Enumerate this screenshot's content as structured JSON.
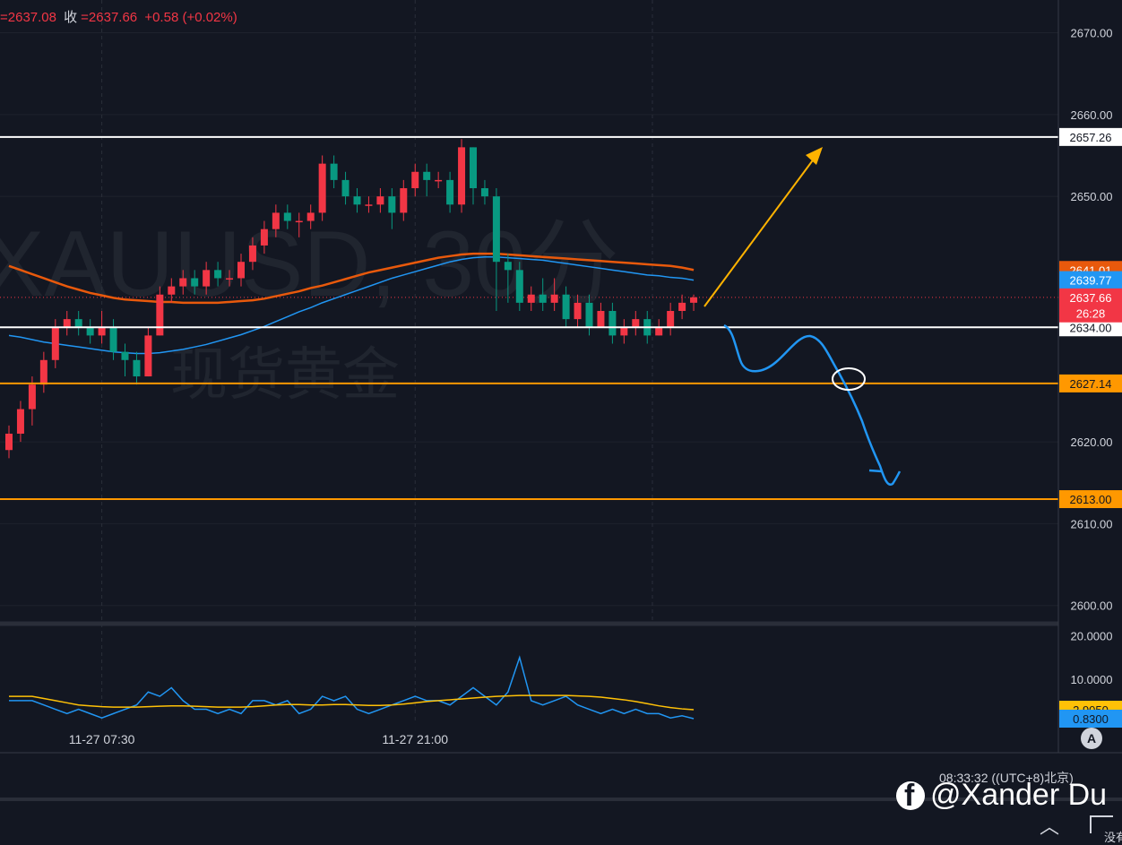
{
  "header": {
    "open_value": "=2637.08",
    "close_label": "收",
    "close_value": "=2637.66",
    "change": "+0.58 (+0.02%)"
  },
  "watermark": {
    "symbol": "XAUUSD, 30分",
    "name": "现货黄金"
  },
  "footer": {
    "time_text": "08:33:32 ((UTC+8)北京)",
    "credit": "@Xander Du",
    "truncated": "没有",
    "auto_scale_label": "A"
  },
  "colors": {
    "up": "#f23645",
    "down": "#089981",
    "bg": "#131722",
    "ma_slow": "#e8590c",
    "ma_fast": "#2196f3",
    "support": "#ff9800",
    "arrow": "#ffb300"
  },
  "chart_data": [
    {
      "type": "candlestick",
      "ylim": [
        2598,
        2674
      ],
      "y_ticks": [
        "2670.00",
        "2660.00",
        "2650.00",
        "2620.00",
        "2610.00",
        "2600.00"
      ],
      "x_ticks": [
        "11-27 07:30",
        "11-27 21:00"
      ],
      "x_tick_index": [
        8,
        35
      ],
      "candles": [
        [
          2619,
          2621,
          2622,
          2618
        ],
        [
          2621,
          2624,
          2625,
          2620
        ],
        [
          2624,
          2627,
          2628,
          2622
        ],
        [
          2627,
          2630,
          2631,
          2626
        ],
        [
          2630,
          2634,
          2635,
          2629
        ],
        [
          2634,
          2635,
          2636,
          2633
        ],
        [
          2635,
          2634,
          2636,
          2633
        ],
        [
          2634,
          2633,
          2635,
          2632
        ],
        [
          2633,
          2634,
          2636,
          2632
        ],
        [
          2634,
          2631,
          2635,
          2630
        ],
        [
          2631,
          2630,
          2632,
          2628
        ],
        [
          2630,
          2628,
          2631,
          2627
        ],
        [
          2628,
          2633,
          2634,
          2628
        ],
        [
          2633,
          2638,
          2639,
          2633
        ],
        [
          2638,
          2639,
          2640,
          2637
        ],
        [
          2639,
          2640,
          2641,
          2638
        ],
        [
          2640,
          2639,
          2641,
          2638
        ],
        [
          2639,
          2641,
          2642,
          2638
        ],
        [
          2641,
          2640,
          2642,
          2639
        ],
        [
          2640,
          2640,
          2641,
          2639
        ],
        [
          2640,
          2642,
          2643,
          2639
        ],
        [
          2642,
          2644,
          2645,
          2641
        ],
        [
          2644,
          2646,
          2647,
          2643
        ],
        [
          2646,
          2648,
          2649,
          2645
        ],
        [
          2648,
          2647,
          2649,
          2646
        ],
        [
          2647,
          2647,
          2648,
          2645
        ],
        [
          2647,
          2648,
          2649,
          2646
        ],
        [
          2648,
          2654,
          2655,
          2647
        ],
        [
          2654,
          2652,
          2655,
          2651
        ],
        [
          2652,
          2650,
          2653,
          2649
        ],
        [
          2650,
          2649,
          2651,
          2648
        ],
        [
          2649,
          2649,
          2650,
          2648
        ],
        [
          2649,
          2650,
          2651,
          2648
        ],
        [
          2650,
          2648,
          2651,
          2646
        ],
        [
          2648,
          2651,
          2652,
          2647
        ],
        [
          2651,
          2653,
          2654,
          2650
        ],
        [
          2653,
          2652,
          2654,
          2650
        ],
        [
          2652,
          2652,
          2653,
          2651
        ],
        [
          2652,
          2649,
          2653,
          2648
        ],
        [
          2649,
          2656,
          2657,
          2648
        ],
        [
          2656,
          2651,
          2656,
          2649
        ],
        [
          2651,
          2650,
          2652,
          2649
        ],
        [
          2650,
          2642,
          2651,
          2636
        ],
        [
          2642,
          2641,
          2643,
          2637
        ],
        [
          2641,
          2637,
          2642,
          2636
        ],
        [
          2637,
          2638,
          2639,
          2636
        ],
        [
          2638,
          2637,
          2640,
          2636
        ],
        [
          2637,
          2638,
          2640,
          2636
        ],
        [
          2638,
          2635,
          2639,
          2634
        ],
        [
          2635,
          2637,
          2638,
          2634
        ],
        [
          2637,
          2634,
          2638,
          2633
        ],
        [
          2634,
          2636,
          2637,
          2634
        ],
        [
          2636,
          2633,
          2637,
          2632
        ],
        [
          2633,
          2634,
          2635,
          2632
        ],
        [
          2634,
          2635,
          2636,
          2633
        ],
        [
          2635,
          2633,
          2636,
          2632
        ],
        [
          2633,
          2634,
          2635,
          2633
        ],
        [
          2634,
          2636,
          2637,
          2633
        ],
        [
          2636,
          2637,
          2638,
          2635
        ],
        [
          2637,
          2637.66,
          2638,
          2636
        ]
      ],
      "series": [
        {
          "name": "",
          "color": "#e8590c",
          "values": [
            2641.5,
            2641.0,
            2640.5,
            2640.0,
            2639.5,
            2639.0,
            2638.6,
            2638.2,
            2637.9,
            2637.6,
            2637.4,
            2637.3,
            2637.2,
            2637.1,
            2637.1,
            2637.0,
            2637.0,
            2637.0,
            2637.0,
            2637.1,
            2637.2,
            2637.3,
            2637.5,
            2637.8,
            2638.1,
            2638.4,
            2638.8,
            2639.1,
            2639.5,
            2639.9,
            2640.3,
            2640.7,
            2641.0,
            2641.3,
            2641.6,
            2641.9,
            2642.2,
            2642.5,
            2642.7,
            2642.9,
            2643.0,
            2643.0,
            2643.0,
            2642.9,
            2642.8,
            2642.7,
            2642.6,
            2642.5,
            2642.4,
            2642.3,
            2642.2,
            2642.1,
            2642.0,
            2641.9,
            2641.8,
            2641.7,
            2641.6,
            2641.5,
            2641.3,
            2641.01
          ]
        },
        {
          "name": "",
          "color": "#2196f3",
          "values": [
            2633.0,
            2632.8,
            2632.5,
            2632.2,
            2632.0,
            2631.8,
            2631.6,
            2631.4,
            2631.2,
            2631.0,
            2630.9,
            2630.8,
            2630.8,
            2630.9,
            2631.1,
            2631.3,
            2631.6,
            2631.9,
            2632.3,
            2632.7,
            2633.1,
            2633.6,
            2634.1,
            2634.7,
            2635.3,
            2635.9,
            2636.4,
            2637.0,
            2637.5,
            2638.0,
            2638.5,
            2639.0,
            2639.5,
            2640.0,
            2640.4,
            2640.8,
            2641.2,
            2641.6,
            2642.0,
            2642.3,
            2642.5,
            2642.6,
            2642.6,
            2642.5,
            2642.4,
            2642.3,
            2642.2,
            2642.0,
            2641.8,
            2641.6,
            2641.4,
            2641.2,
            2641.0,
            2640.8,
            2640.6,
            2640.4,
            2640.3,
            2640.1,
            2640.0,
            2639.77
          ]
        }
      ],
      "price_lines": [
        {
          "value": 2657.26,
          "label": "2657.26",
          "color": "#ffffff"
        },
        {
          "value": 2634.0,
          "label": "2634.00",
          "color": "#ffffff"
        },
        {
          "value": 2627.14,
          "label": "2627.14",
          "color": "#ff9800"
        },
        {
          "value": 2613.0,
          "label": "2613.00",
          "color": "#ff9800"
        }
      ],
      "axis_badges": [
        {
          "value": 2641.01,
          "label": "2641.01",
          "color": "#e8590c"
        },
        {
          "value": 2639.77,
          "label": "2639.77",
          "color": "#2196f3"
        },
        {
          "value": 2637.66,
          "label": "2637.66",
          "color": "#f23645"
        },
        {
          "value": 2635.7,
          "label": "26:28",
          "color": "#f23645"
        }
      ]
    },
    {
      "type": "line",
      "ylim": [
        0,
        22
      ],
      "y_ticks": [
        "20.0000",
        "10.0000"
      ],
      "badges": [
        {
          "value": 2.905,
          "label": "2.9050",
          "color": "#ffc107"
        },
        {
          "value": 0.83,
          "label": "0.8300",
          "color": "#2196f3"
        }
      ],
      "series": [
        {
          "name": "",
          "color": "#2196f3",
          "values": [
            5,
            5,
            5,
            4,
            3,
            2,
            3,
            2,
            1,
            2,
            3,
            4,
            7,
            6,
            8,
            5,
            3,
            3,
            2,
            3,
            2,
            5,
            5,
            4,
            5,
            2,
            3,
            6,
            5,
            6,
            3,
            2,
            3,
            4,
            5,
            6,
            5,
            5,
            4,
            6,
            8,
            6,
            4,
            7,
            15,
            5,
            4,
            5,
            6,
            4,
            3,
            2,
            3,
            2,
            3,
            2,
            2,
            1,
            1.5,
            0.83
          ]
        },
        {
          "name": "",
          "color": "#ffc107",
          "values": [
            6,
            6,
            6,
            5.5,
            5,
            4.5,
            4,
            3.8,
            3.6,
            3.5,
            3.5,
            3.5,
            3.6,
            3.7,
            3.8,
            3.8,
            3.7,
            3.6,
            3.5,
            3.5,
            3.5,
            3.6,
            3.8,
            4,
            4.1,
            4.1,
            4,
            4,
            4.1,
            4.1,
            4,
            3.9,
            3.9,
            4,
            4.2,
            4.5,
            4.8,
            5,
            5.2,
            5.4,
            5.6,
            5.8,
            6,
            6.1,
            6.2,
            6.2,
            6.2,
            6.2,
            6.2,
            6.1,
            6,
            5.8,
            5.5,
            5.2,
            4.8,
            4.3,
            3.8,
            3.4,
            3.1,
            2.905
          ]
        }
      ]
    }
  ]
}
